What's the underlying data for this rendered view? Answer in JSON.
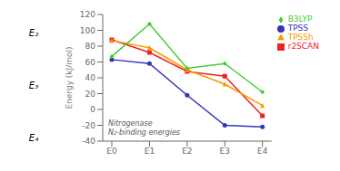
{
  "chart_data": {
    "type": "line",
    "categories": [
      "E0",
      "E1",
      "E2",
      "E3",
      "E4"
    ],
    "series": [
      {
        "name": "TPSS",
        "color": "#3333bb",
        "marker": "circle",
        "line_style": "solid",
        "values": [
          63,
          58,
          18,
          -20,
          -22
        ]
      },
      {
        "name": "r2SCAN",
        "color": "#ee2222",
        "marker": "square",
        "line_style": "solid",
        "values": [
          88,
          72,
          48,
          42,
          -8
        ]
      },
      {
        "name": "TPSSh",
        "color": "#ff9900",
        "marker": "triangle",
        "line_style": "solid",
        "values": [
          87,
          78,
          50,
          32,
          5
        ]
      },
      {
        "name": "B3LYP",
        "color": "#44cc33",
        "marker": "diamond",
        "line_style": "solid",
        "values": [
          67,
          108,
          52,
          58,
          22
        ]
      }
    ],
    "ylabel": "Energy (kJ/mol)",
    "ylim": [
      -40,
      120
    ],
    "yticks": [
      -40,
      -20,
      0,
      20,
      40,
      60,
      80,
      100,
      120
    ],
    "legend": "upper right",
    "grid": false,
    "annotations": [
      "Nitrogenase\nN₂-binding energies",
      "E₂",
      "E₃",
      "E₄"
    ]
  }
}
